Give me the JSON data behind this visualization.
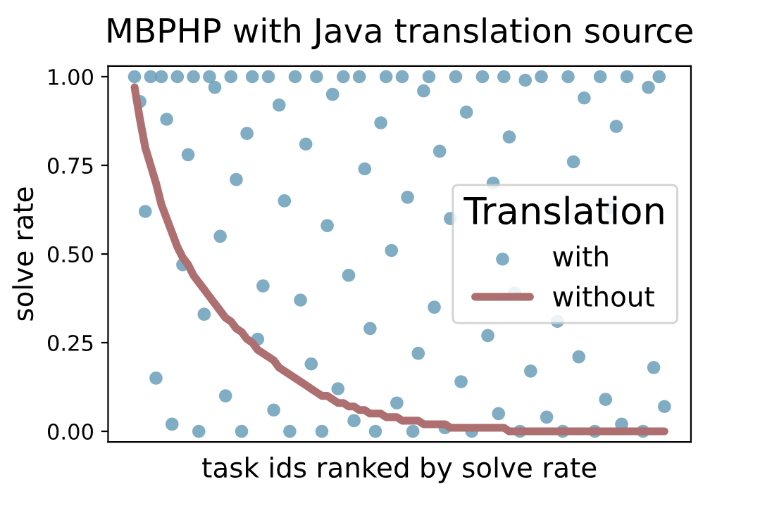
{
  "chart_data": {
    "type": "scatter",
    "title": "MBPHP with Java translation source",
    "xlabel": "task ids ranked by solve rate",
    "ylabel": "solve rate",
    "legend_title": "Translation",
    "legend": "center right",
    "categories": [
      null,
      null,
      null,
      null,
      null,
      null,
      null,
      null,
      null,
      null,
      null,
      null,
      null,
      null,
      null,
      null,
      null,
      null,
      null,
      null,
      null,
      null,
      null,
      null,
      null,
      null,
      null,
      null,
      null,
      null,
      null,
      null,
      null,
      null,
      null,
      null,
      null,
      null,
      null,
      null,
      null,
      null,
      null,
      null,
      null,
      null,
      null,
      null,
      null,
      null,
      null,
      null,
      null,
      null,
      null,
      null,
      null,
      null,
      null,
      null,
      null,
      null,
      null,
      null,
      null,
      null,
      null,
      null,
      null,
      null,
      null,
      null,
      null,
      null,
      null,
      null,
      null,
      null,
      null,
      null,
      null,
      null,
      null,
      null,
      null,
      null,
      null,
      null,
      null,
      null,
      null,
      null,
      null,
      null,
      null,
      null,
      null,
      null,
      null,
      null
    ],
    "ylim": [
      -0.03,
      1.03
    ],
    "yticks": [
      {
        "value": 0,
        "label": "0.00"
      },
      {
        "value": 0.25,
        "label": "0.25"
      },
      {
        "value": 0.5,
        "label": "0.50"
      },
      {
        "value": 0.75,
        "label": "0.75"
      },
      {
        "value": 1,
        "label": "1.00"
      }
    ],
    "series": [
      {
        "name": "with",
        "marker": "circle",
        "color": "#6a9fb8",
        "values": [
          1,
          0.93,
          0.62,
          1,
          0.15,
          1,
          0.88,
          0.02,
          1,
          0.47,
          0.78,
          1,
          0,
          0.33,
          1,
          0.97,
          0.55,
          0.1,
          1,
          0.71,
          0,
          0.84,
          1,
          0.26,
          0.41,
          1,
          0.06,
          0.92,
          0.65,
          0,
          1,
          0.37,
          0.81,
          0.19,
          1,
          0,
          0.58,
          0.95,
          0.12,
          1,
          0.44,
          0.03,
          1,
          0.74,
          0.29,
          0,
          0.87,
          1,
          0.51,
          0.08,
          1,
          0.66,
          0,
          0.22,
          0.96,
          1,
          0.35,
          0.79,
          0.01,
          0.6,
          1,
          0.14,
          0.9,
          0,
          null,
          1,
          0.27,
          0.7,
          0.05,
          1,
          0.83,
          0.39,
          0,
          0.99,
          0.17,
          null,
          1,
          0.04,
          null,
          0.31,
          0,
          1,
          0.76,
          0.21,
          0.94,
          null,
          0,
          1,
          0.09,
          0.63,
          0.86,
          0.02,
          1,
          null,
          null,
          0,
          0.97,
          0.18,
          1,
          0.07
        ]
      },
      {
        "name": "without",
        "type": "line",
        "color": "#ad6f6f",
        "values": [
          0.97,
          0.88,
          0.8,
          0.75,
          0.7,
          0.64,
          0.6,
          0.56,
          0.52,
          0.49,
          0.47,
          0.44,
          0.42,
          0.4,
          0.38,
          0.36,
          0.34,
          0.32,
          0.31,
          0.29,
          0.28,
          0.26,
          0.25,
          0.23,
          0.22,
          0.21,
          0.2,
          0.18,
          0.17,
          0.16,
          0.15,
          0.14,
          0.13,
          0.12,
          0.11,
          0.1,
          0.1,
          0.09,
          0.08,
          0.08,
          0.07,
          0.07,
          0.06,
          0.06,
          0.05,
          0.05,
          0.05,
          0.04,
          0.04,
          0.04,
          0.03,
          0.03,
          0.03,
          0.03,
          0.02,
          0.02,
          0.02,
          0.02,
          0.02,
          0.01,
          0.01,
          0.01,
          0.01,
          0.01,
          0.01,
          0.01,
          0.01,
          0.01,
          0.01,
          0.01,
          0,
          0,
          0,
          0,
          0,
          0,
          0,
          0,
          0,
          0,
          0,
          0,
          0,
          0,
          0,
          0,
          0,
          0,
          0,
          0,
          0,
          0,
          0,
          0,
          0,
          0,
          0,
          0,
          0,
          0
        ]
      }
    ]
  }
}
